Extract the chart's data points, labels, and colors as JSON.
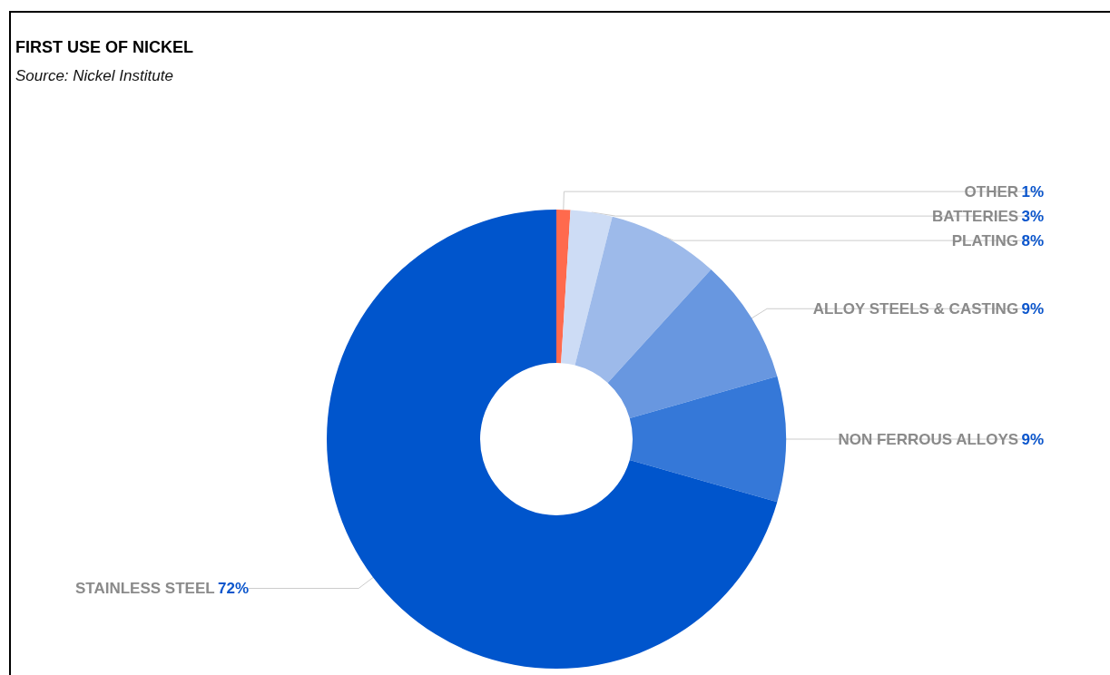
{
  "chart_data": {
    "type": "donut",
    "title": "FIRST USE OF NICKEL",
    "annotations": [
      "Source: Nickel Institute"
    ],
    "categories": [
      "OTHER",
      "BATTERIES",
      "PLATING",
      "ALLOY STEELS & CASTING",
      "NON FERROUS ALLOYS",
      "STAINLESS STEEL"
    ],
    "values": [
      1,
      3,
      8,
      9,
      9,
      72
    ],
    "value_labels": [
      "1%",
      "3%",
      "8%",
      "9%",
      "9%",
      "72%"
    ],
    "colors": [
      "#ff6a4d",
      "#cddcf5",
      "#9dbaea",
      "#6897e0",
      "#3578d8",
      "#0055cc"
    ],
    "legend": false
  }
}
